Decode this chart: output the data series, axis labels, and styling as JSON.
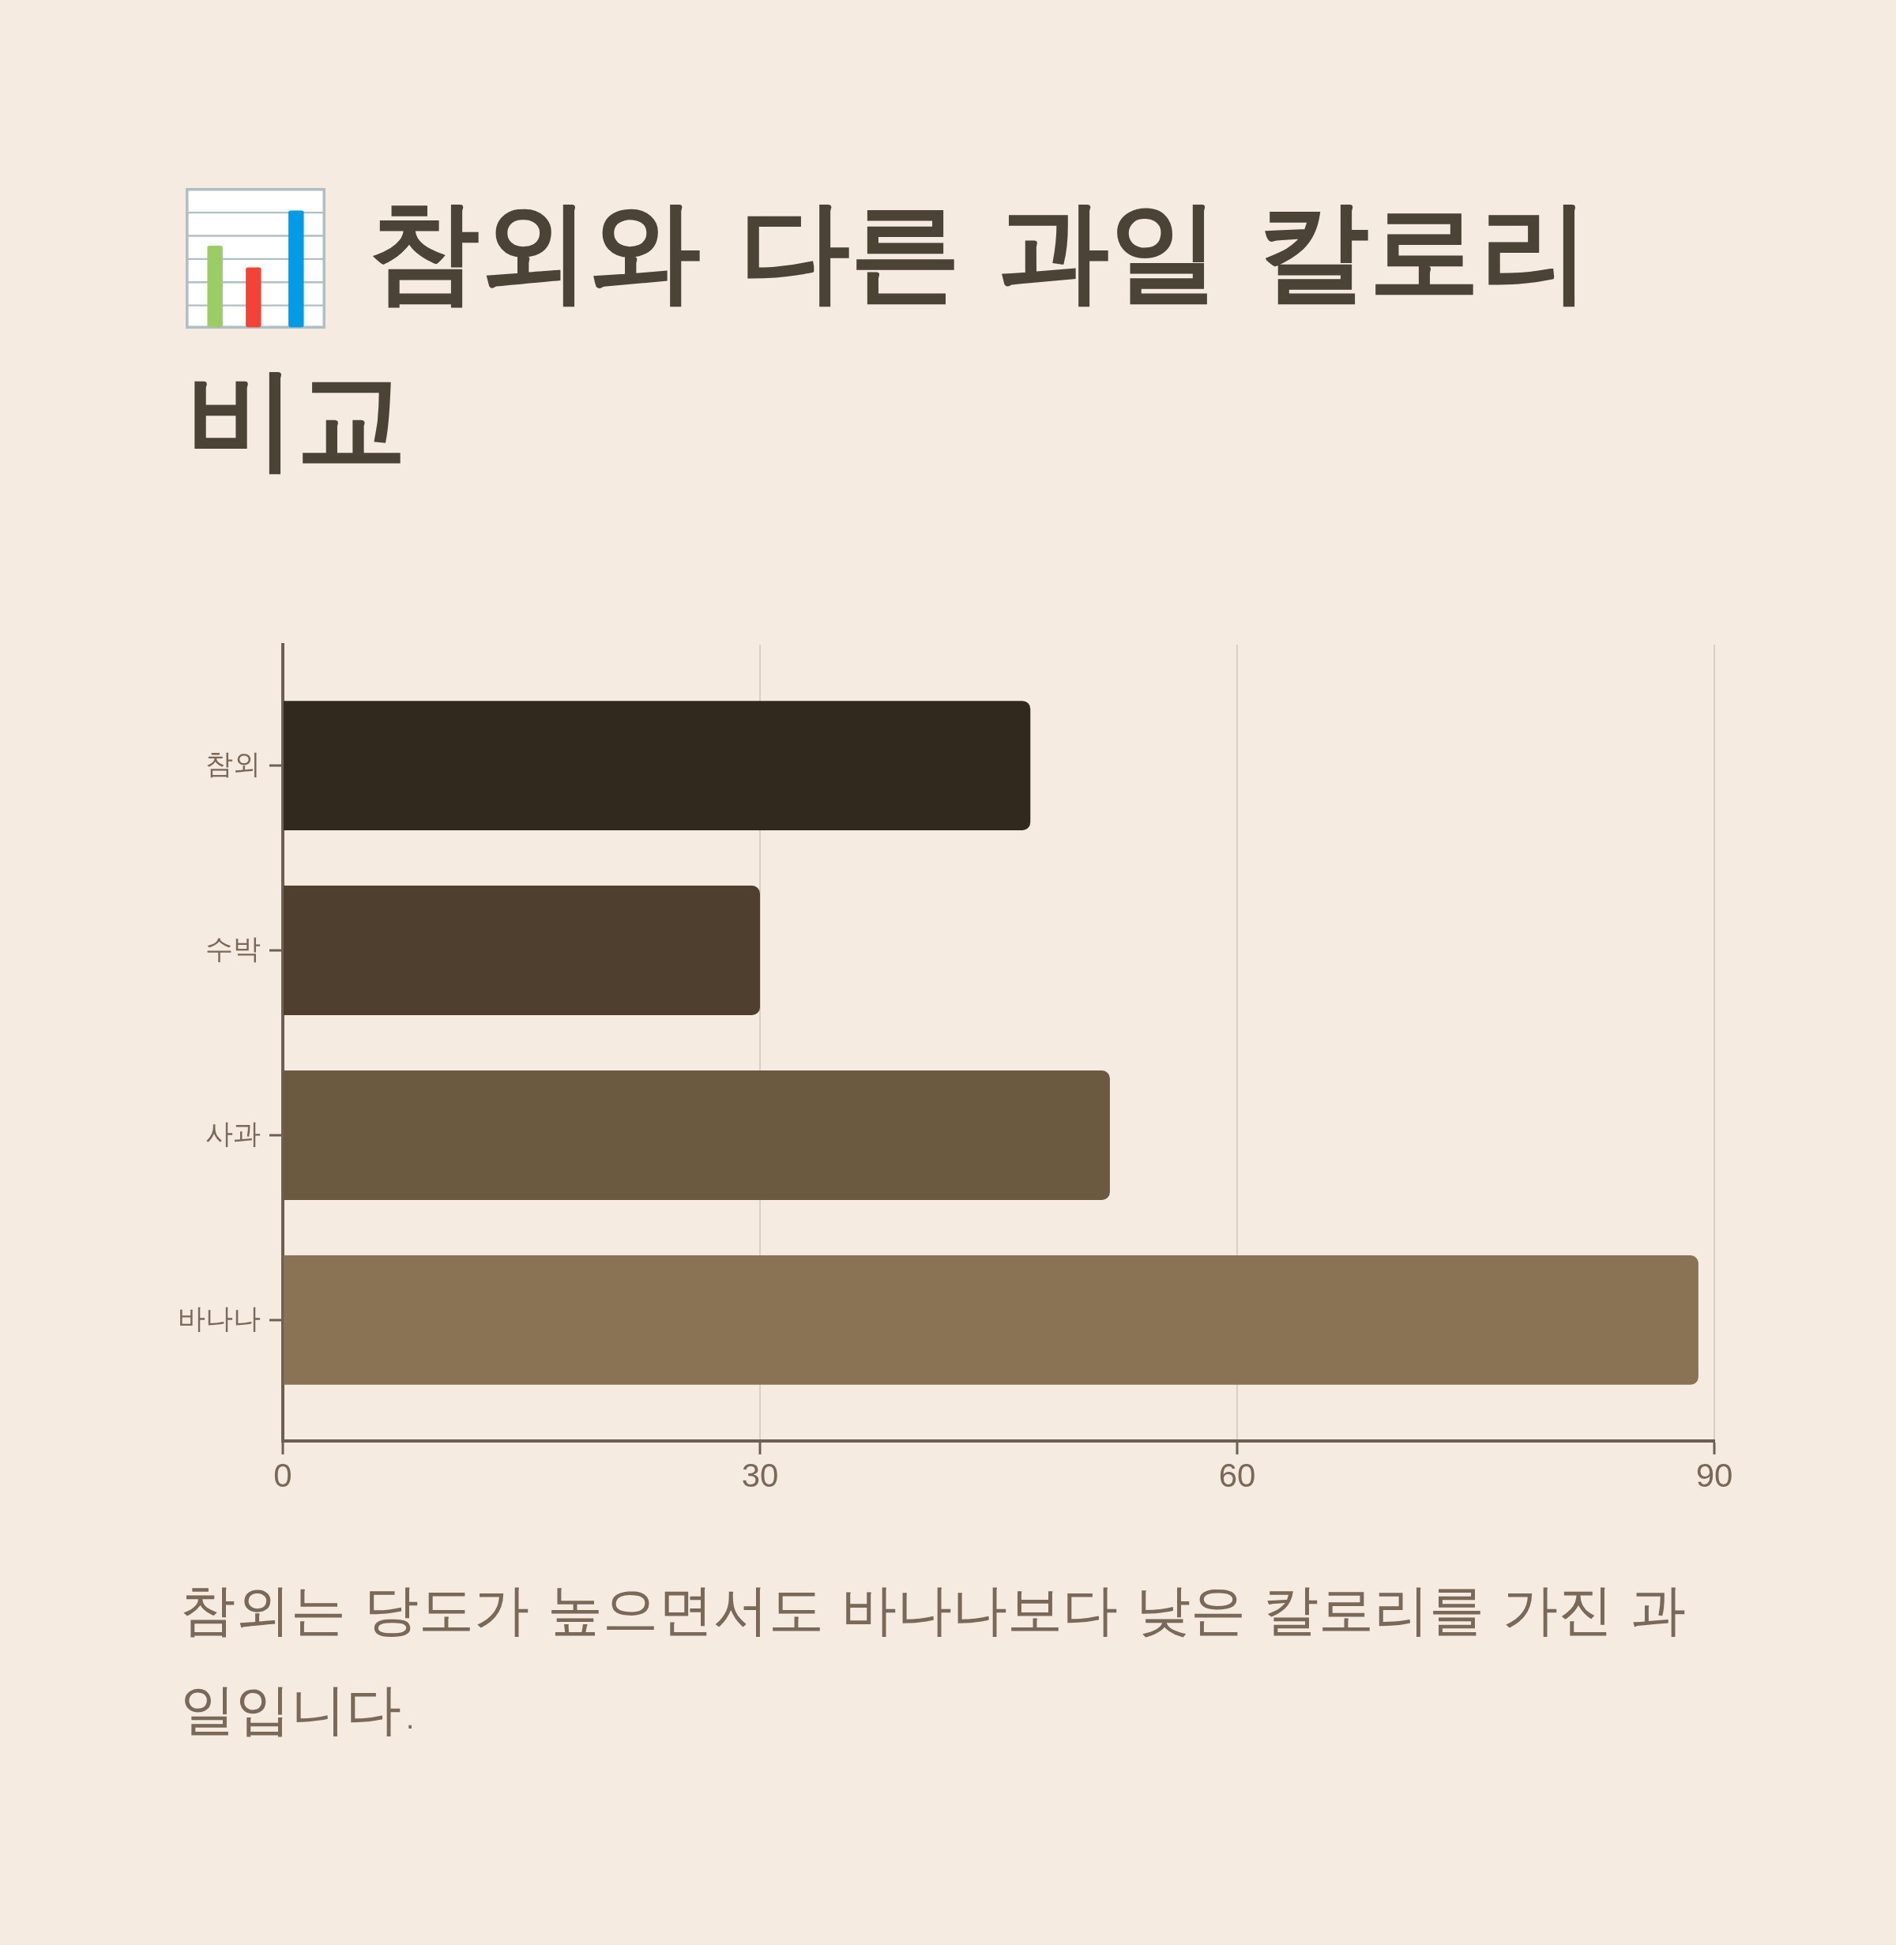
{
  "chart_data": {
    "type": "bar",
    "orientation": "horizontal",
    "title": "참외와 다른 과일 칼로리 비교",
    "categories": [
      "참외",
      "수박",
      "사과",
      "바나나"
    ],
    "values": [
      47,
      30,
      52,
      89
    ],
    "colors": [
      "#32291e",
      "#4f3f2f",
      "#6b5940",
      "#8a7254"
    ],
    "xlim": [
      0,
      90
    ],
    "xticks": [
      0,
      30,
      60,
      90
    ],
    "grid": "x",
    "legend": false,
    "annotations": [
      "참외는 당도가 높으면서도 바나나보다 낮은 칼로리를 가진 과일입니다."
    ]
  }
}
